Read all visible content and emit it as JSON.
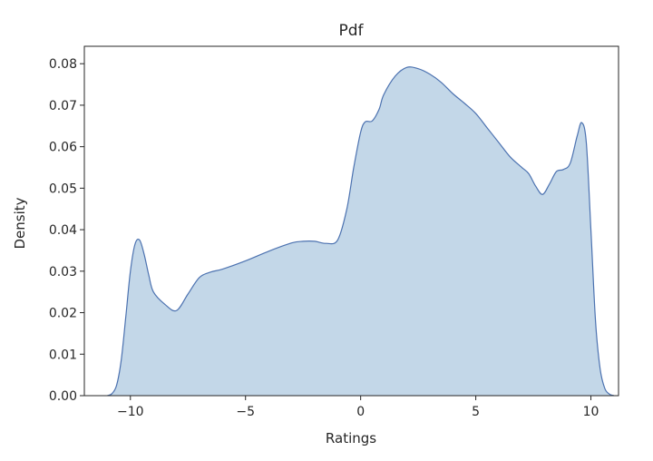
{
  "chart_data": {
    "type": "area",
    "title": "Pdf",
    "xlabel": "Ratings",
    "ylabel": "Density",
    "xlim": [
      -12.0,
      11.2
    ],
    "ylim": [
      0.0,
      0.0842
    ],
    "xticks": [
      -10,
      -5,
      0,
      5,
      10
    ],
    "xtick_labels": [
      "−10",
      "−5",
      "0",
      "5",
      "10"
    ],
    "yticks": [
      0.0,
      0.01,
      0.02,
      0.03,
      0.04,
      0.05,
      0.06,
      0.07,
      0.08
    ],
    "ytick_labels": [
      "0.00",
      "0.01",
      "0.02",
      "0.03",
      "0.04",
      "0.05",
      "0.06",
      "0.07",
      "0.08"
    ],
    "grid": false,
    "legend": "none",
    "fill_color": "#c3d7e8",
    "line_color": "#4c72b0",
    "series": [
      {
        "x": [
          -11.0,
          -10.8,
          -10.6,
          -10.4,
          -10.2,
          -10.0,
          -9.8,
          -9.6,
          -9.4,
          -9.2,
          -9.0,
          -8.5,
          -8.0,
          -7.5,
          -7.0,
          -6.5,
          -6.0,
          -5.0,
          -4.0,
          -3.0,
          -2.5,
          -2.0,
          -1.5,
          -1.0,
          -0.6,
          -0.3,
          0.0,
          0.2,
          0.5,
          0.8,
          1.0,
          1.5,
          2.0,
          2.5,
          3.0,
          3.5,
          4.0,
          4.5,
          5.0,
          5.5,
          6.0,
          6.5,
          7.0,
          7.3,
          7.6,
          7.9,
          8.2,
          8.5,
          8.8,
          9.1,
          9.4,
          9.6,
          9.8,
          10.0,
          10.2,
          10.4,
          10.6,
          10.8,
          11.0
        ],
        "y": [
          0.0,
          0.0005,
          0.0025,
          0.0085,
          0.019,
          0.03,
          0.0365,
          0.0375,
          0.034,
          0.029,
          0.025,
          0.022,
          0.0205,
          0.0245,
          0.0285,
          0.0298,
          0.0305,
          0.0325,
          0.0348,
          0.0368,
          0.0372,
          0.0372,
          0.0367,
          0.0375,
          0.045,
          0.055,
          0.0635,
          0.066,
          0.0662,
          0.069,
          0.0725,
          0.077,
          0.0791,
          0.0788,
          0.0775,
          0.0755,
          0.0728,
          0.0705,
          0.068,
          0.0645,
          0.061,
          0.0575,
          0.055,
          0.0535,
          0.0505,
          0.0485,
          0.051,
          0.054,
          0.0545,
          0.056,
          0.0625,
          0.0658,
          0.061,
          0.04,
          0.018,
          0.0065,
          0.0018,
          0.0004,
          0.0
        ]
      }
    ]
  }
}
